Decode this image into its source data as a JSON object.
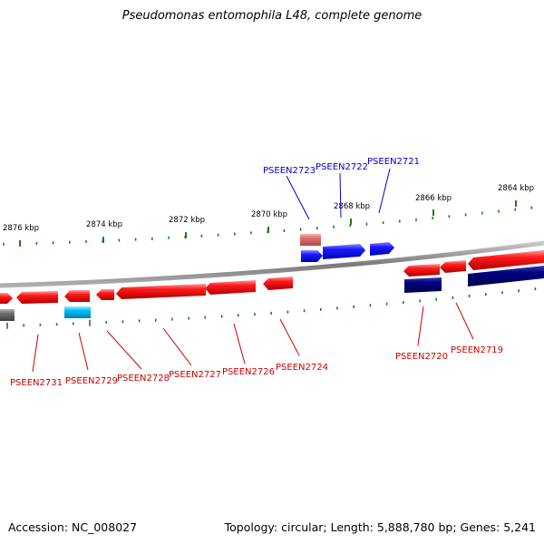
{
  "title": "Pseudomonas entomophila L48, complete genome",
  "footer": {
    "accession": "Accession: NC_008027",
    "stats": "Topology: circular; Length: 5,888,780 bp; Genes: 5,241"
  },
  "colors": {
    "backbone": "#8a8a8a",
    "tick": "#1f7a1f",
    "forward_gene": "#ff0000",
    "reverse_gene": "#0000ff",
    "navy_gene": "#000080",
    "cyan_gene": "#00bfff",
    "pink_gene": "#e07070",
    "gray_gene": "#707070",
    "label_forward": "#cc0000",
    "label_reverse": "#0000cc"
  },
  "scale_labels": [
    {
      "id": "2876",
      "text": "2876 kbp"
    },
    {
      "id": "2874",
      "text": "2874 kbp"
    },
    {
      "id": "2872",
      "text": "2872 kbp"
    },
    {
      "id": "2870",
      "text": "2870 kbp"
    },
    {
      "id": "2868",
      "text": "2868 kbp"
    },
    {
      "id": "2866",
      "text": "2866 kbp"
    },
    {
      "id": "2864",
      "text": "2864 kbp"
    }
  ],
  "gene_labels": [
    {
      "id": "PSEEN2723",
      "text": "PSEEN2723",
      "strand": "reverse"
    },
    {
      "id": "PSEEN2722",
      "text": "PSEEN2722",
      "strand": "reverse"
    },
    {
      "id": "PSEEN2721",
      "text": "PSEEN2721",
      "strand": "reverse"
    },
    {
      "id": "PSEEN2731",
      "text": "PSEEN2731",
      "strand": "forward"
    },
    {
      "id": "PSEEN2729",
      "text": "PSEEN2729",
      "strand": "forward"
    },
    {
      "id": "PSEEN2728",
      "text": "PSEEN2728",
      "strand": "forward"
    },
    {
      "id": "PSEEN2727",
      "text": "PSEEN2727",
      "strand": "forward"
    },
    {
      "id": "PSEEN2726",
      "text": "PSEEN2726",
      "strand": "forward"
    },
    {
      "id": "PSEEN2724",
      "text": "PSEEN2724",
      "strand": "forward"
    },
    {
      "id": "PSEEN2720",
      "text": "PSEEN2720",
      "strand": "forward"
    },
    {
      "id": "PSEEN2719",
      "text": "PSEEN2719",
      "strand": "forward"
    }
  ]
}
